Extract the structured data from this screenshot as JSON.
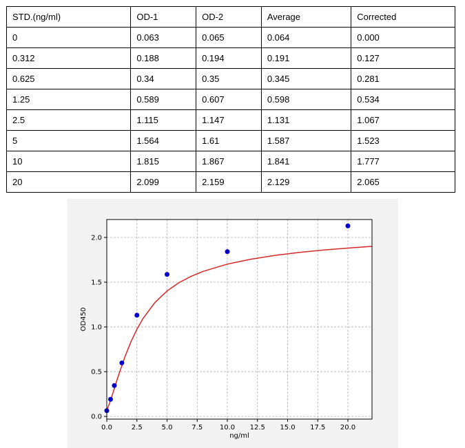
{
  "table": {
    "headers": [
      "STD.(ng/ml)",
      "OD-1",
      "OD-2",
      "Average",
      "Corrected"
    ],
    "rows": [
      [
        "0",
        "0.063",
        "0.065",
        "0.064",
        "0.000"
      ],
      [
        "0.312",
        "0.188",
        "0.194",
        "0.191",
        "0.127"
      ],
      [
        "0.625",
        "0.34",
        "0.35",
        "0.345",
        "0.281"
      ],
      [
        "1.25",
        "0.589",
        "0.607",
        "0.598",
        "0.534"
      ],
      [
        "2.5",
        "1.115",
        "1.147",
        "1.131",
        "1.067"
      ],
      [
        "5",
        "1.564",
        "1.61",
        "1.587",
        "1.523"
      ],
      [
        "10",
        "1.815",
        "1.867",
        "1.841",
        "1.777"
      ],
      [
        "20",
        "2.099",
        "2.159",
        "2.129",
        "2.065"
      ]
    ]
  },
  "chart_data": {
    "type": "scatter",
    "title": "",
    "xlabel": "ng/ml",
    "ylabel": "OD450",
    "xlim": [
      0,
      22
    ],
    "ylim": [
      -0.03,
      2.2
    ],
    "xticks": [
      "0.0",
      "2.5",
      "5.0",
      "7.5",
      "10.0",
      "12.5",
      "15.0",
      "17.5",
      "20.0"
    ],
    "yticks": [
      "0.0",
      "0.5",
      "1.0",
      "1.5",
      "2.0"
    ],
    "grid": true,
    "legend": "none",
    "series": [
      {
        "kind": "points",
        "color": "#0000cc",
        "x": [
          0,
          0.312,
          0.625,
          1.25,
          2.5,
          5,
          10,
          20
        ],
        "y": [
          0.064,
          0.191,
          0.345,
          0.598,
          1.131,
          1.587,
          1.841,
          2.129
        ]
      },
      {
        "kind": "fitted-curve",
        "color": "#d62728",
        "x": [
          0,
          0.25,
          0.5,
          0.75,
          1,
          1.5,
          2,
          2.5,
          3,
          4,
          5,
          6,
          7,
          8,
          10,
          12,
          14,
          16,
          18,
          20,
          22
        ],
        "y": [
          0.064,
          0.155,
          0.258,
          0.365,
          0.47,
          0.665,
          0.833,
          0.975,
          1.093,
          1.274,
          1.402,
          1.496,
          1.566,
          1.621,
          1.702,
          1.758,
          1.8,
          1.833,
          1.859,
          1.881,
          1.9
        ]
      }
    ]
  }
}
